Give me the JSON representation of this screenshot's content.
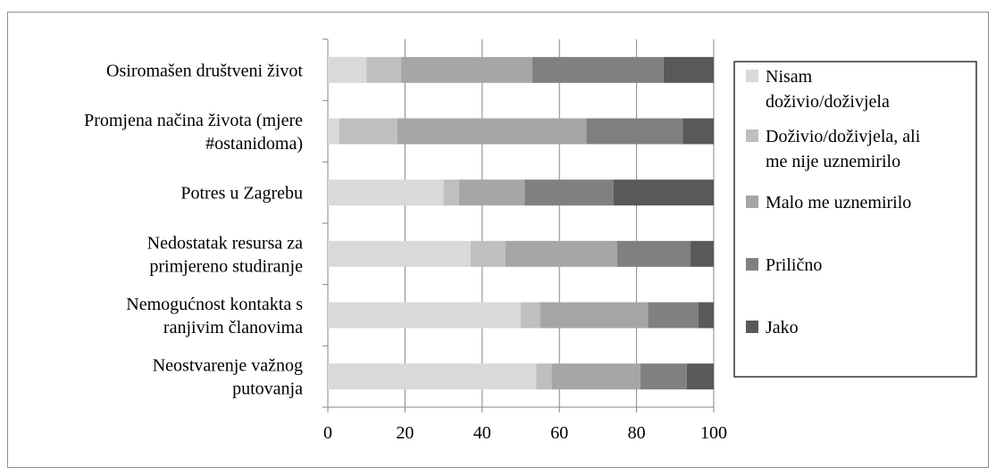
{
  "chart_data": {
    "type": "bar",
    "orientation": "horizontal",
    "stacked": true,
    "categories": [
      "Osiromašen društveni život",
      "Promjena načina života (mjere #ostanidoma)",
      "Potres u Zagrebu",
      "Nedostatak resursa za primjereno studiranje",
      "Nemogućnost kontakta s ranjivim članovima",
      "Neostvarenje važnog putovanja"
    ],
    "category_label_lines": [
      [
        "Osiromašen društveni život"
      ],
      [
        "Promjena načina života (mjere",
        "#ostanidoma)"
      ],
      [
        "Potres u Zagrebu"
      ],
      [
        "Nedostatak resursa za",
        "primjereno studiranje"
      ],
      [
        "Nemogućnost kontakta s",
        "ranjivim članovima"
      ],
      [
        "Neostvarenje važnog",
        "putovanja"
      ]
    ],
    "series": [
      {
        "name": "Nisam doživio/doživjela",
        "color": "#d9d9d9",
        "values": [
          10,
          3,
          30,
          37,
          50,
          54
        ]
      },
      {
        "name": "Doživio/doživjela, ali me nije uznemirilo",
        "color": "#bfbfbf",
        "values": [
          9,
          15,
          4,
          9,
          5,
          4
        ]
      },
      {
        "name": "Malo me uznemirilo",
        "color": "#a6a6a6",
        "values": [
          34,
          49,
          17,
          29,
          28,
          23
        ]
      },
      {
        "name": "Prilično",
        "color": "#808080",
        "values": [
          34,
          25,
          23,
          19,
          13,
          12
        ]
      },
      {
        "name": "Jako",
        "color": "#595959",
        "values": [
          13,
          8,
          26,
          6,
          4,
          7
        ]
      }
    ],
    "legend_label_lines": [
      [
        "Nisam",
        "doživio/doživjela"
      ],
      [
        "Doživio/doživjela, ali",
        "me nije uznemirilo"
      ],
      [
        "Malo me uznemirilo"
      ],
      [
        "Prilično"
      ],
      [
        "Jako"
      ]
    ],
    "xlim": [
      0,
      100
    ],
    "xticks": [
      0,
      20,
      40,
      60,
      80,
      100
    ],
    "grid": true,
    "legend_position": "right",
    "title": "",
    "xlabel": "",
    "ylabel": ""
  }
}
